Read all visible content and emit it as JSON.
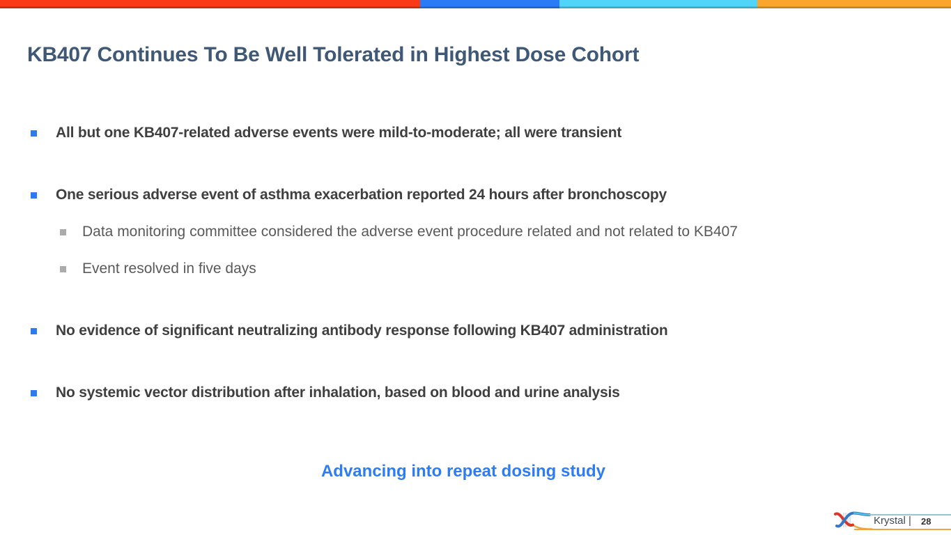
{
  "title": "KB407 Continues To Be Well Tolerated in Highest Dose Cohort",
  "bullets": [
    {
      "level": 1,
      "text": "All but one KB407-related adverse events were mild-to-moderate; all were transient"
    },
    {
      "level": 1,
      "text": "One serious adverse event of asthma exacerbation reported 24 hours after bronchoscopy"
    },
    {
      "level": 2,
      "text": "Data monitoring committee considered the adverse event procedure related and not related to KB407"
    },
    {
      "level": 2,
      "text": "Event resolved in five days"
    },
    {
      "level": 1,
      "text": "No evidence of significant neutralizing antibody response following KB407 administration"
    },
    {
      "level": 1,
      "text": "No systemic vector distribution after inhalation, based on blood and urine analysis"
    }
  ],
  "callout": "Advancing into repeat dosing study",
  "footer": {
    "brand": "Krystal |",
    "page_number": "28"
  },
  "colors": {
    "bar_red": "#fa3917",
    "bar_blue": "#2b7bf7",
    "bar_cyan": "#50d5f8",
    "bar_orange": "#f9a52e",
    "title": "#3f5876",
    "body_bold": "#3f3f3f",
    "body_sub": "#595959",
    "bullet_blue": "#2e7bf0",
    "bullet_gray": "#ababab",
    "callout_blue": "#2e7cf5"
  }
}
